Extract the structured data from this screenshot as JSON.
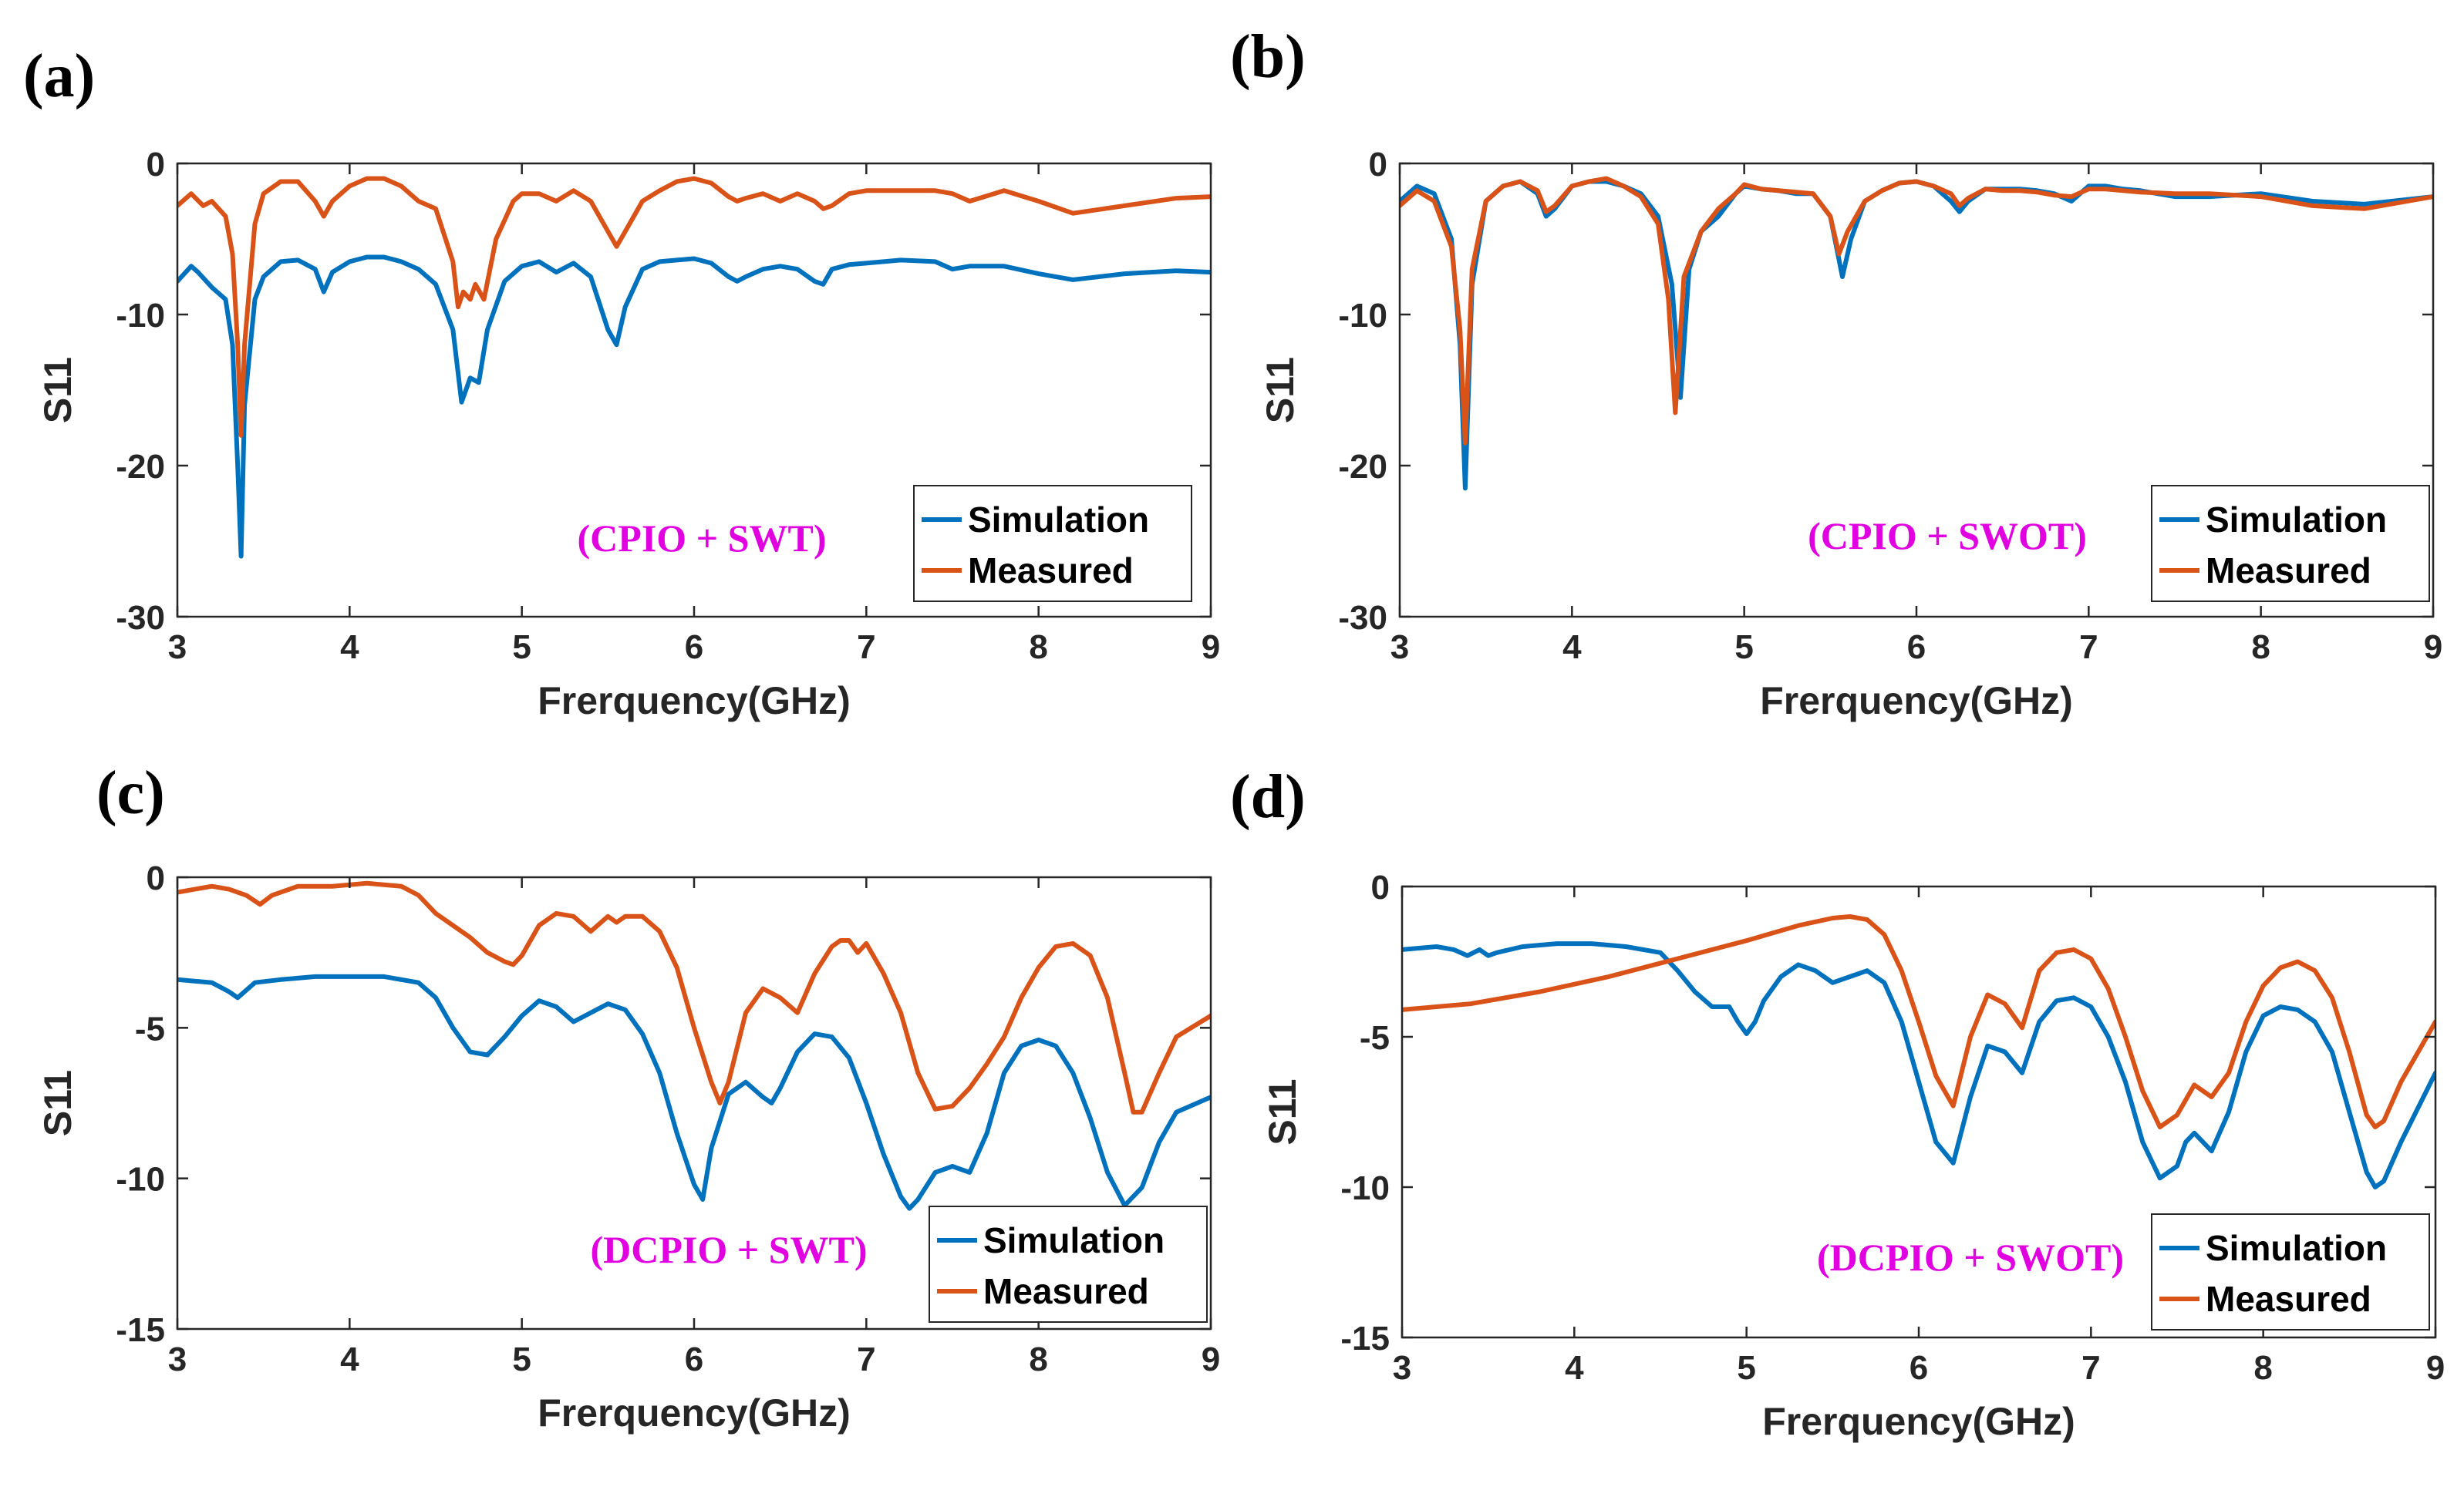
{
  "figure_colors": {
    "simulation": "#0072BD",
    "measured": "#D95319",
    "annotation": "#E000E0",
    "axis": "#262626"
  },
  "chart_data": [
    {
      "type": "line",
      "panel_label": "(a)",
      "annotation": "(CPIO + SWT)",
      "xlabel": "Frerquency(GHz)",
      "ylabel": "S11",
      "xlim": [
        3,
        9
      ],
      "ylim": [
        -30,
        0
      ],
      "xticks": [
        3,
        4,
        5,
        6,
        7,
        8,
        9
      ],
      "yticks": [
        0,
        -10,
        -20,
        -30
      ],
      "legend": {
        "position": "bottom-right",
        "entries": [
          "Simulation",
          "Measured"
        ]
      },
      "series": [
        {
          "name": "Simulation",
          "x": [
            3.0,
            3.08,
            3.12,
            3.2,
            3.28,
            3.32,
            3.35,
            3.37,
            3.39,
            3.45,
            3.5,
            3.6,
            3.7,
            3.8,
            3.85,
            3.9,
            4.0,
            4.1,
            4.2,
            4.3,
            4.4,
            4.5,
            4.6,
            4.65,
            4.7,
            4.75,
            4.8,
            4.9,
            5.0,
            5.1,
            5.2,
            5.3,
            5.4,
            5.5,
            5.55,
            5.6,
            5.7,
            5.8,
            5.9,
            6.0,
            6.1,
            6.2,
            6.25,
            6.3,
            6.4,
            6.5,
            6.6,
            6.7,
            6.75,
            6.8,
            6.9,
            7.0,
            7.2,
            7.4,
            7.5,
            7.6,
            7.8,
            8.0,
            8.2,
            8.5,
            8.8,
            9.0
          ],
          "y": [
            -7.8,
            -6.8,
            -7.2,
            -8.2,
            -9.0,
            -12.0,
            -20.0,
            -26.0,
            -16.0,
            -9.0,
            -7.5,
            -6.5,
            -6.4,
            -7.0,
            -8.5,
            -7.2,
            -6.5,
            -6.2,
            -6.2,
            -6.5,
            -7.0,
            -8.0,
            -11.0,
            -15.8,
            -14.2,
            -14.5,
            -11.0,
            -7.8,
            -6.8,
            -6.5,
            -7.2,
            -6.6,
            -7.5,
            -11.0,
            -12.0,
            -9.5,
            -7.0,
            -6.5,
            -6.4,
            -6.3,
            -6.6,
            -7.5,
            -7.8,
            -7.5,
            -7.0,
            -6.8,
            -7.0,
            -7.8,
            -8.0,
            -7.0,
            -6.7,
            -6.6,
            -6.4,
            -6.5,
            -7.0,
            -6.8,
            -6.8,
            -7.3,
            -7.7,
            -7.3,
            -7.1,
            -7.2
          ]
        },
        {
          "name": "Measured",
          "x": [
            3.0,
            3.08,
            3.15,
            3.2,
            3.28,
            3.32,
            3.35,
            3.37,
            3.39,
            3.45,
            3.5,
            3.6,
            3.7,
            3.8,
            3.85,
            3.9,
            4.0,
            4.1,
            4.2,
            4.3,
            4.4,
            4.5,
            4.6,
            4.63,
            4.66,
            4.7,
            4.73,
            4.78,
            4.85,
            4.95,
            5.0,
            5.1,
            5.2,
            5.3,
            5.4,
            5.5,
            5.55,
            5.6,
            5.7,
            5.8,
            5.9,
            6.0,
            6.1,
            6.2,
            6.25,
            6.3,
            6.4,
            6.5,
            6.6,
            6.7,
            6.75,
            6.8,
            6.9,
            7.0,
            7.2,
            7.4,
            7.5,
            7.6,
            7.8,
            8.0,
            8.2,
            8.5,
            8.8,
            9.0
          ],
          "y": [
            -2.8,
            -2.0,
            -2.8,
            -2.5,
            -3.5,
            -6.0,
            -12.0,
            -18.0,
            -12.0,
            -4.0,
            -2.0,
            -1.2,
            -1.2,
            -2.5,
            -3.5,
            -2.5,
            -1.5,
            -1.0,
            -1.0,
            -1.5,
            -2.5,
            -3.0,
            -6.5,
            -9.5,
            -8.5,
            -9.0,
            -8.0,
            -9.0,
            -5.0,
            -2.5,
            -2.0,
            -2.0,
            -2.5,
            -1.8,
            -2.5,
            -4.5,
            -5.5,
            -4.5,
            -2.5,
            -1.8,
            -1.2,
            -1.0,
            -1.3,
            -2.2,
            -2.5,
            -2.3,
            -2.0,
            -2.5,
            -2.0,
            -2.5,
            -3.0,
            -2.8,
            -2.0,
            -1.8,
            -1.8,
            -1.8,
            -2.0,
            -2.5,
            -1.8,
            -2.5,
            -3.3,
            -2.8,
            -2.3,
            -2.2
          ]
        }
      ]
    },
    {
      "type": "line",
      "panel_label": "(b)",
      "annotation": "(CPIO + SWOT)",
      "xlabel": "Frerquency(GHz)",
      "ylabel": "S11",
      "xlim": [
        3,
        9
      ],
      "ylim": [
        -30,
        0
      ],
      "xticks": [
        3,
        4,
        5,
        6,
        7,
        8,
        9
      ],
      "yticks": [
        0,
        -10,
        -20,
        -30
      ],
      "legend": {
        "position": "bottom-right",
        "entries": [
          "Simulation",
          "Measured"
        ]
      },
      "series": [
        {
          "name": "Simulation",
          "x": [
            3.0,
            3.1,
            3.2,
            3.3,
            3.35,
            3.38,
            3.42,
            3.5,
            3.6,
            3.7,
            3.8,
            3.85,
            3.9,
            4.0,
            4.1,
            4.2,
            4.3,
            4.4,
            4.5,
            4.58,
            4.63,
            4.68,
            4.75,
            4.85,
            4.95,
            5.0,
            5.1,
            5.2,
            5.3,
            5.4,
            5.5,
            5.57,
            5.62,
            5.7,
            5.8,
            5.9,
            6.0,
            6.1,
            6.2,
            6.25,
            6.3,
            6.4,
            6.5,
            6.6,
            6.7,
            6.8,
            6.9,
            7.0,
            7.1,
            7.2,
            7.3,
            7.5,
            7.7,
            8.0,
            8.3,
            8.6,
            9.0
          ],
          "y": [
            -2.5,
            -1.5,
            -2.0,
            -5.0,
            -12.0,
            -21.5,
            -8.0,
            -2.5,
            -1.5,
            -1.2,
            -2.0,
            -3.5,
            -3.0,
            -1.5,
            -1.2,
            -1.2,
            -1.5,
            -2.0,
            -3.5,
            -8.0,
            -15.5,
            -7.0,
            -4.5,
            -3.5,
            -2.0,
            -1.5,
            -1.7,
            -1.8,
            -2.0,
            -2.0,
            -3.5,
            -7.5,
            -5.0,
            -2.5,
            -1.8,
            -1.3,
            -1.2,
            -1.5,
            -2.5,
            -3.2,
            -2.5,
            -1.7,
            -1.7,
            -1.7,
            -1.8,
            -2.0,
            -2.5,
            -1.5,
            -1.5,
            -1.7,
            -1.8,
            -2.2,
            -2.2,
            -2.0,
            -2.5,
            -2.7,
            -2.2
          ]
        },
        {
          "name": "Measured",
          "x": [
            3.0,
            3.1,
            3.2,
            3.3,
            3.35,
            3.38,
            3.42,
            3.5,
            3.6,
            3.7,
            3.8,
            3.85,
            3.9,
            4.0,
            4.1,
            4.2,
            4.3,
            4.4,
            4.5,
            4.56,
            4.6,
            4.65,
            4.75,
            4.85,
            4.95,
            5.0,
            5.1,
            5.2,
            5.3,
            5.4,
            5.5,
            5.55,
            5.6,
            5.7,
            5.8,
            5.9,
            6.0,
            6.1,
            6.2,
            6.25,
            6.3,
            6.4,
            6.5,
            6.6,
            6.7,
            6.8,
            6.9,
            7.0,
            7.1,
            7.2,
            7.3,
            7.5,
            7.7,
            8.0,
            8.3,
            8.6,
            9.0
          ],
          "y": [
            -2.8,
            -1.8,
            -2.5,
            -5.5,
            -11.0,
            -18.5,
            -7.0,
            -2.5,
            -1.5,
            -1.2,
            -1.8,
            -3.2,
            -2.8,
            -1.5,
            -1.2,
            -1.0,
            -1.5,
            -2.2,
            -4.0,
            -9.0,
            -16.5,
            -7.5,
            -4.5,
            -3.0,
            -2.0,
            -1.4,
            -1.7,
            -1.8,
            -1.9,
            -2.0,
            -3.5,
            -6.0,
            -4.5,
            -2.5,
            -1.8,
            -1.3,
            -1.2,
            -1.5,
            -2.0,
            -2.8,
            -2.3,
            -1.7,
            -1.8,
            -1.8,
            -1.9,
            -2.1,
            -2.2,
            -1.7,
            -1.7,
            -1.8,
            -1.9,
            -2.0,
            -2.0,
            -2.2,
            -2.8,
            -3.0,
            -2.2
          ]
        }
      ]
    },
    {
      "type": "line",
      "panel_label": "(c)",
      "annotation": "(DCPIO + SWT)",
      "xlabel": "Frerquency(GHz)",
      "ylabel": "S11",
      "xlim": [
        3,
        9
      ],
      "ylim": [
        -15,
        0
      ],
      "xticks": [
        3,
        4,
        5,
        6,
        7,
        8,
        9
      ],
      "yticks": [
        0,
        -5,
        -10,
        -15
      ],
      "legend": {
        "position": "bottom-right",
        "entries": [
          "Simulation",
          "Measured"
        ]
      },
      "series": [
        {
          "name": "Simulation",
          "x": [
            3.0,
            3.2,
            3.3,
            3.35,
            3.45,
            3.6,
            3.8,
            4.0,
            4.2,
            4.4,
            4.5,
            4.6,
            4.7,
            4.8,
            4.9,
            5.0,
            5.1,
            5.2,
            5.3,
            5.4,
            5.5,
            5.6,
            5.7,
            5.8,
            5.9,
            6.0,
            6.05,
            6.1,
            6.2,
            6.3,
            6.4,
            6.45,
            6.5,
            6.6,
            6.7,
            6.8,
            6.9,
            7.0,
            7.1,
            7.2,
            7.25,
            7.3,
            7.4,
            7.5,
            7.6,
            7.7,
            7.8,
            7.9,
            8.0,
            8.1,
            8.2,
            8.3,
            8.4,
            8.5,
            8.6,
            8.7,
            8.8,
            9.0
          ],
          "y": [
            -3.4,
            -3.5,
            -3.8,
            -4.0,
            -3.5,
            -3.4,
            -3.3,
            -3.3,
            -3.3,
            -3.5,
            -4.0,
            -5.0,
            -5.8,
            -5.9,
            -5.3,
            -4.6,
            -4.1,
            -4.3,
            -4.8,
            -4.5,
            -4.2,
            -4.4,
            -5.2,
            -6.5,
            -8.5,
            -10.2,
            -10.7,
            -9.0,
            -7.2,
            -6.8,
            -7.3,
            -7.5,
            -7.0,
            -5.8,
            -5.2,
            -5.3,
            -6.0,
            -7.5,
            -9.2,
            -10.6,
            -11.0,
            -10.7,
            -9.8,
            -9.6,
            -9.8,
            -8.5,
            -6.5,
            -5.6,
            -5.4,
            -5.6,
            -6.5,
            -8.0,
            -9.8,
            -10.9,
            -10.3,
            -8.8,
            -7.8,
            -7.3
          ]
        },
        {
          "name": "Measured",
          "x": [
            3.0,
            3.2,
            3.3,
            3.4,
            3.48,
            3.55,
            3.7,
            3.9,
            4.1,
            4.3,
            4.4,
            4.5,
            4.6,
            4.7,
            4.8,
            4.9,
            4.95,
            5.0,
            5.1,
            5.2,
            5.3,
            5.4,
            5.5,
            5.55,
            5.6,
            5.7,
            5.8,
            5.9,
            6.0,
            6.1,
            6.15,
            6.2,
            6.3,
            6.4,
            6.5,
            6.6,
            6.7,
            6.8,
            6.85,
            6.9,
            6.95,
            7.0,
            7.1,
            7.2,
            7.3,
            7.4,
            7.5,
            7.6,
            7.7,
            7.8,
            7.9,
            8.0,
            8.1,
            8.2,
            8.3,
            8.4,
            8.5,
            8.55,
            8.6,
            8.7,
            8.8,
            9.0
          ],
          "y": [
            -0.5,
            -0.3,
            -0.4,
            -0.6,
            -0.9,
            -0.6,
            -0.3,
            -0.3,
            -0.2,
            -0.3,
            -0.6,
            -1.2,
            -1.6,
            -2.0,
            -2.5,
            -2.8,
            -2.9,
            -2.6,
            -1.6,
            -1.2,
            -1.3,
            -1.8,
            -1.3,
            -1.5,
            -1.3,
            -1.3,
            -1.8,
            -3.0,
            -5.0,
            -6.8,
            -7.5,
            -6.8,
            -4.5,
            -3.7,
            -4.0,
            -4.5,
            -3.2,
            -2.3,
            -2.1,
            -2.1,
            -2.5,
            -2.2,
            -3.2,
            -4.5,
            -6.5,
            -7.7,
            -7.6,
            -7.0,
            -6.2,
            -5.3,
            -4.0,
            -3.0,
            -2.3,
            -2.2,
            -2.6,
            -4.0,
            -6.5,
            -7.8,
            -7.8,
            -6.5,
            -5.3,
            -4.6
          ]
        }
      ]
    },
    {
      "type": "line",
      "panel_label": "(d)",
      "annotation": "(DCPIO + SWOT)",
      "xlabel": "Frerquency(GHz)",
      "ylabel": "S11",
      "xlim": [
        3,
        9
      ],
      "ylim": [
        -15,
        0
      ],
      "xticks": [
        3,
        4,
        5,
        6,
        7,
        8,
        9
      ],
      "yticks": [
        0,
        -5,
        -10,
        -15
      ],
      "legend": {
        "position": "bottom-right",
        "entries": [
          "Simulation",
          "Measured"
        ]
      },
      "series": [
        {
          "name": "Simulation",
          "x": [
            3.0,
            3.2,
            3.3,
            3.38,
            3.45,
            3.5,
            3.55,
            3.7,
            3.9,
            4.1,
            4.3,
            4.5,
            4.6,
            4.7,
            4.8,
            4.9,
            4.95,
            5.0,
            5.05,
            5.1,
            5.2,
            5.3,
            5.4,
            5.5,
            5.6,
            5.7,
            5.8,
            5.9,
            6.0,
            6.1,
            6.2,
            6.3,
            6.4,
            6.5,
            6.6,
            6.7,
            6.8,
            6.9,
            7.0,
            7.1,
            7.2,
            7.3,
            7.4,
            7.5,
            7.55,
            7.6,
            7.7,
            7.8,
            7.9,
            8.0,
            8.1,
            8.2,
            8.3,
            8.4,
            8.5,
            8.6,
            8.65,
            8.7,
            8.8,
            9.0
          ],
          "y": [
            -2.1,
            -2.0,
            -2.1,
            -2.3,
            -2.1,
            -2.3,
            -2.2,
            -2.0,
            -1.9,
            -1.9,
            -2.0,
            -2.2,
            -2.8,
            -3.5,
            -4.0,
            -4.0,
            -4.5,
            -4.9,
            -4.5,
            -3.8,
            -3.0,
            -2.6,
            -2.8,
            -3.2,
            -3.0,
            -2.8,
            -3.2,
            -4.5,
            -6.5,
            -8.5,
            -9.2,
            -7.0,
            -5.3,
            -5.5,
            -6.2,
            -4.5,
            -3.8,
            -3.7,
            -4.0,
            -5.0,
            -6.5,
            -8.5,
            -9.7,
            -9.3,
            -8.5,
            -8.2,
            -8.8,
            -7.5,
            -5.5,
            -4.3,
            -4.0,
            -4.1,
            -4.5,
            -5.5,
            -7.5,
            -9.5,
            -10.0,
            -9.8,
            -8.5,
            -6.2
          ]
        },
        {
          "name": "Measured",
          "x": [
            3.0,
            3.4,
            3.8,
            4.2,
            4.6,
            5.0,
            5.3,
            5.5,
            5.6,
            5.7,
            5.8,
            5.9,
            6.0,
            6.1,
            6.2,
            6.3,
            6.4,
            6.5,
            6.6,
            6.7,
            6.8,
            6.9,
            7.0,
            7.1,
            7.2,
            7.3,
            7.4,
            7.5,
            7.6,
            7.7,
            7.8,
            7.9,
            8.0,
            8.1,
            8.2,
            8.3,
            8.4,
            8.5,
            8.6,
            8.65,
            8.7,
            8.8,
            9.0
          ],
          "y": [
            -4.1,
            -3.9,
            -3.5,
            -3.0,
            -2.4,
            -1.8,
            -1.3,
            -1.05,
            -1.0,
            -1.1,
            -1.6,
            -2.8,
            -4.5,
            -6.3,
            -7.3,
            -5.0,
            -3.6,
            -3.9,
            -4.7,
            -2.8,
            -2.2,
            -2.1,
            -2.4,
            -3.4,
            -5.0,
            -6.8,
            -8.0,
            -7.6,
            -6.6,
            -7.0,
            -6.2,
            -4.5,
            -3.3,
            -2.7,
            -2.5,
            -2.8,
            -3.7,
            -5.5,
            -7.6,
            -8.0,
            -7.8,
            -6.5,
            -4.5
          ]
        }
      ]
    }
  ]
}
